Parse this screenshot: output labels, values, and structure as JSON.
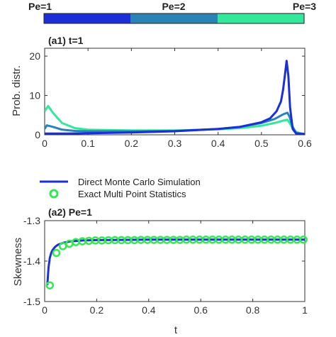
{
  "colorbar": {
    "labels": [
      "Pe=1",
      "Pe=2",
      "Pe=3"
    ],
    "colors": [
      "#1a2fd6",
      "#2a83b7",
      "#33e89a"
    ]
  },
  "chart_data": [
    {
      "type": "line",
      "title": "(a1) t=1",
      "xlabel": "",
      "ylabel": "Prob. distr.",
      "xlim": [
        0,
        0.6
      ],
      "ylim": [
        0,
        22
      ],
      "xticks": [
        0,
        0.1,
        0.2,
        0.3,
        0.4,
        0.5,
        0.6
      ],
      "xtick_labels": [
        "0",
        "0.1",
        "0.2",
        "0.3",
        "0.4",
        "0.5",
        "0.6"
      ],
      "yticks": [
        0,
        10,
        20
      ],
      "ytick_labels": [
        "0",
        "10",
        "20"
      ],
      "series": [
        {
          "color": "#1a2fd6",
          "x": [
            0,
            0.01,
            0.05,
            0.1,
            0.2,
            0.3,
            0.4,
            0.45,
            0.5,
            0.52,
            0.535,
            0.545,
            0.55,
            0.555,
            0.558,
            0.562,
            0.566,
            0.572,
            0.58,
            0.6
          ],
          "y": [
            0.3,
            0.3,
            0.3,
            0.4,
            0.6,
            0.9,
            1.5,
            2.0,
            3.2,
            4.2,
            6.0,
            8.5,
            11.5,
            16.0,
            18.8,
            15.0,
            7.0,
            1.5,
            0.3,
            0.2
          ]
        },
        {
          "color": "#2a83b7",
          "x": [
            0,
            0.005,
            0.02,
            0.04,
            0.07,
            0.1,
            0.2,
            0.3,
            0.4,
            0.45,
            0.5,
            0.53,
            0.55,
            0.56,
            0.565,
            0.572,
            0.58,
            0.6
          ],
          "y": [
            1.5,
            2.4,
            2.0,
            1.3,
            1.0,
            0.9,
            0.9,
            1.0,
            1.5,
            2.0,
            3.0,
            4.0,
            5.2,
            5.6,
            4.5,
            2.0,
            0.5,
            0.2
          ]
        },
        {
          "color": "#33e89a",
          "x": [
            0,
            0.008,
            0.02,
            0.04,
            0.07,
            0.1,
            0.2,
            0.3,
            0.4,
            0.45,
            0.5,
            0.53,
            0.55,
            0.56,
            0.565,
            0.575,
            0.59,
            0.6
          ],
          "y": [
            6.0,
            7.3,
            5.5,
            3.0,
            1.7,
            1.3,
            1.1,
            1.1,
            1.4,
            1.7,
            2.3,
            3.0,
            3.6,
            3.8,
            3.0,
            1.0,
            0.3,
            0.2
          ]
        }
      ]
    },
    {
      "type": "line",
      "title": "(a2) Pe=1",
      "xlabel": "t",
      "ylabel": "Skewness",
      "xlim": [
        0,
        1
      ],
      "ylim": [
        -1.5,
        -1.3
      ],
      "xticks": [
        0,
        0.2,
        0.4,
        0.6,
        0.8,
        1
      ],
      "xtick_labels": [
        "0",
        "0.2",
        "0.4",
        "0.6",
        "0.8",
        "1"
      ],
      "yticks": [
        -1.5,
        -1.4,
        -1.3
      ],
      "ytick_labels": [
        "-1.5",
        "-1.4",
        "-1.3"
      ],
      "legend": [
        {
          "label": "Direct Monte Carlo Simulation",
          "color": "#1a2fd6",
          "marker": "line"
        },
        {
          "label": "Exact Multi Point Statistics",
          "color": "#33e850",
          "marker": "circle"
        }
      ],
      "legend_placement": "top",
      "line": {
        "color": "#1a2fd6",
        "x": [
          0.01,
          0.015,
          0.02,
          0.025,
          0.03,
          0.04,
          0.05,
          0.07,
          0.1,
          0.15,
          0.2,
          0.3,
          0.4,
          0.5,
          0.6,
          0.7,
          0.8,
          0.9,
          1.0
        ],
        "y": [
          -1.46,
          -1.415,
          -1.392,
          -1.38,
          -1.373,
          -1.365,
          -1.36,
          -1.355,
          -1.351,
          -1.349,
          -1.348,
          -1.3475,
          -1.347,
          -1.347,
          -1.347,
          -1.347,
          -1.347,
          -1.347,
          -1.347
        ]
      },
      "markers": {
        "color": "#33e850",
        "x": [
          0.02,
          0.045,
          0.07,
          0.095,
          0.12,
          0.145,
          0.17,
          0.195,
          0.22,
          0.245,
          0.27,
          0.295,
          0.32,
          0.345,
          0.37,
          0.395,
          0.42,
          0.445,
          0.47,
          0.495,
          0.52,
          0.545,
          0.57,
          0.595,
          0.62,
          0.645,
          0.67,
          0.695,
          0.72,
          0.745,
          0.77,
          0.795,
          0.82,
          0.845,
          0.87,
          0.895,
          0.92,
          0.945,
          0.97,
          0.995
        ],
        "y": [
          -1.46,
          -1.38,
          -1.363,
          -1.357,
          -1.353,
          -1.351,
          -1.35,
          -1.349,
          -1.349,
          -1.3485,
          -1.348,
          -1.348,
          -1.348,
          -1.348,
          -1.3475,
          -1.3475,
          -1.3475,
          -1.3475,
          -1.3475,
          -1.3475,
          -1.3475,
          -1.347,
          -1.347,
          -1.347,
          -1.347,
          -1.347,
          -1.347,
          -1.347,
          -1.347,
          -1.347,
          -1.347,
          -1.347,
          -1.347,
          -1.347,
          -1.347,
          -1.347,
          -1.347,
          -1.347,
          -1.347,
          -1.347
        ]
      }
    }
  ]
}
